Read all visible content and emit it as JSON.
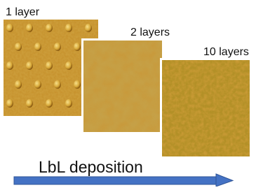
{
  "labels": {
    "first": "1 layer",
    "second": "2 layers",
    "third": "10 layers"
  },
  "arrow": {
    "label": "LbL deposition"
  }
}
